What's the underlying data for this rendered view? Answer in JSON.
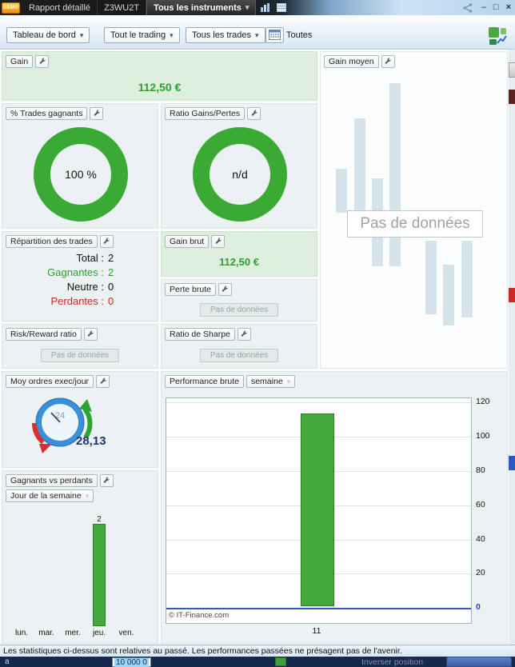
{
  "colors": {
    "accent_green": "#3aaa35",
    "positive_text": "#2f9e2f",
    "negative_text": "#cc2222",
    "bar_green": "#44a83c",
    "panel_green_bg": "#dcefdc",
    "zero_line_blue": "#3355cc"
  },
  "icons": {
    "dropdown_arrow": "▾"
  },
  "titlebar": {
    "demo_badge": "DEMO",
    "tab_report": "Rapport détaillé",
    "tab_account": "Z3WU2T",
    "tab_instruments": "Tous les instruments",
    "minimize": "–",
    "maximize": "□",
    "close": "×"
  },
  "toolbar": {
    "view_dropdown": "Tableau de bord",
    "scope_dropdown": "Tout le trading",
    "trades_dropdown": "Tous les trades",
    "period_label": "Toutes"
  },
  "panels": {
    "gain": {
      "title": "Gain",
      "value": "112,50 €"
    },
    "gain_moyen": {
      "title": "Gain moyen",
      "no_data": "Pas de données"
    },
    "pct_gagnants": {
      "title": "% Trades gagnants"
    },
    "ratio_gains_pertes": {
      "title": "Ratio Gains/Pertes"
    },
    "repartition": {
      "title": "Répartition des trades",
      "rows": [
        {
          "label": "Total :",
          "value": "2"
        },
        {
          "label": "Gagnantes :",
          "value": "2"
        },
        {
          "label": "Neutre :",
          "value": "0"
        },
        {
          "label": "Perdantes :",
          "value": "0"
        }
      ]
    },
    "gain_brut": {
      "title": "Gain brut",
      "value": "112,50 €"
    },
    "perte_brute": {
      "title": "Perte brute",
      "no_data": "Pas de données"
    },
    "risk_reward": {
      "title": "Risk/Reward ratio",
      "no_data": "Pas de données"
    },
    "sharpe": {
      "title": "Ratio de Sharpe",
      "no_data": "Pas de données"
    },
    "moy_ordres": {
      "title": "Moy ordres exec/jour",
      "value": "28,13",
      "gauge_label": "24"
    },
    "gagnants_vs_perdants": {
      "title": "Gagnants vs perdants",
      "dropdown": "Jour de la semaine"
    },
    "performance": {
      "title": "Performance brute",
      "dropdown": "semaine",
      "copyright": "© IT-Finance.com"
    }
  },
  "chart_data": [
    {
      "type": "bar",
      "title": "Performance brute (semaine)",
      "categories": [
        "11"
      ],
      "values": [
        112.5
      ],
      "xlabel": "",
      "ylabel": "",
      "ylim": [
        0,
        120
      ],
      "yticks": [
        0,
        20,
        40,
        60,
        80,
        100,
        120
      ],
      "grid": true,
      "legend": "none",
      "bar_color": "#44a83c"
    },
    {
      "type": "pie",
      "title": "% Trades gagnants",
      "center_label": "100 %",
      "slices": [
        {
          "label": "Trades gagnants",
          "value": 100,
          "color": "#3aaa35"
        }
      ]
    },
    {
      "type": "pie",
      "title": "Ratio Gains/Pertes",
      "center_label": "n/d",
      "slices": [
        {
          "label": "n/d",
          "value": 100,
          "color": "#3aaa35"
        }
      ]
    },
    {
      "type": "bar",
      "title": "Gagnants vs perdants (Jour de la semaine)",
      "categories": [
        "lun.",
        "mar.",
        "mer.",
        "jeu.",
        "ven."
      ],
      "values": [
        0,
        0,
        0,
        2,
        0
      ],
      "ylim": [
        0,
        2
      ],
      "bar_color": "#44a83c"
    }
  ],
  "statusbar": {
    "text": "Les statistiques ci-dessus sont relatives au passé. Les performances passées ne présagent pas de l'avenir."
  },
  "bottombar": {
    "left_char": "a",
    "amount": "10 000 0",
    "action": "Inverser position"
  }
}
